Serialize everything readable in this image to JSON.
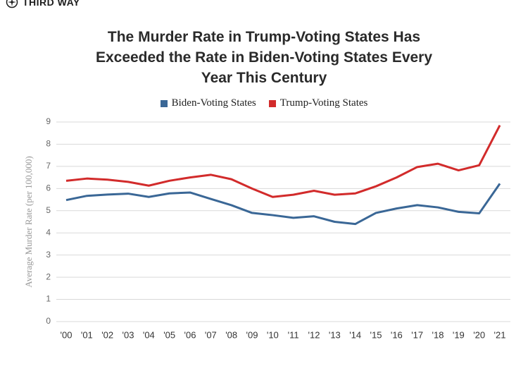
{
  "brand": "THIRD WAY",
  "chart_data": {
    "type": "line",
    "title": "The Murder Rate in Trump-Voting States Has Exceeded the Rate in Biden-Voting States Every Year This Century",
    "y_label": "Average Murder Rate (per 100,000)",
    "categories": [
      "'00",
      "'01",
      "'02",
      "'03",
      "'04",
      "'05",
      "'06",
      "'07",
      "'08",
      "'09",
      "'10",
      "'11",
      "'12",
      "'13",
      "'14",
      "'15",
      "'16",
      "'17",
      "'18",
      "'19",
      "'20",
      "'21"
    ],
    "series": [
      {
        "name": "Biden-Voting States",
        "color": "#3a6796",
        "values": [
          5.48,
          5.67,
          5.73,
          5.77,
          5.62,
          5.78,
          5.82,
          5.53,
          5.25,
          4.9,
          4.8,
          4.68,
          4.75,
          4.5,
          4.4,
          4.9,
          5.1,
          5.25,
          5.15,
          4.95,
          4.88,
          6.22
        ]
      },
      {
        "name": "Trump-Voting States",
        "color": "#d22b2b",
        "values": [
          6.35,
          6.45,
          6.4,
          6.3,
          6.13,
          6.35,
          6.5,
          6.62,
          6.42,
          6.0,
          5.62,
          5.72,
          5.9,
          5.72,
          5.78,
          6.1,
          6.5,
          6.97,
          7.12,
          6.82,
          7.05,
          8.85
        ]
      }
    ],
    "ylim": [
      0,
      9
    ],
    "yticks": [
      0,
      1,
      2,
      3,
      4,
      5,
      6,
      7,
      8,
      9
    ],
    "grid": true
  }
}
